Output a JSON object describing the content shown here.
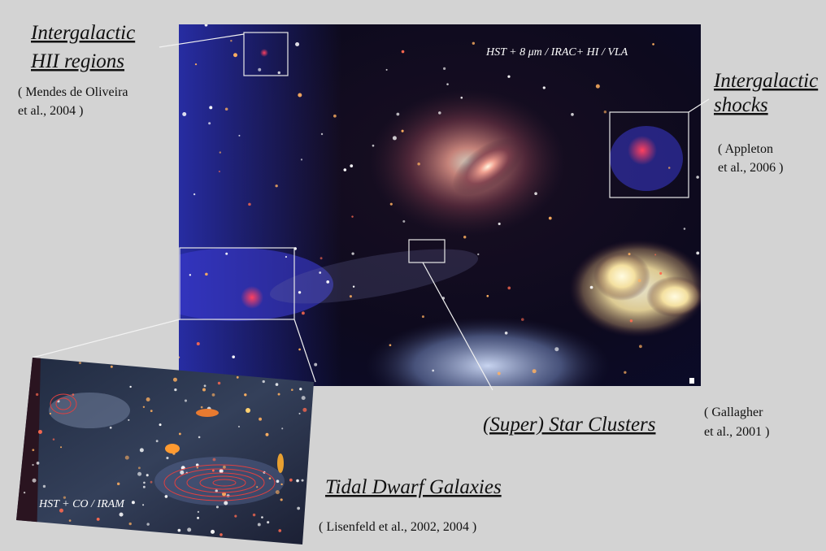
{
  "labels": {
    "hii": {
      "title": [
        "Intergalactic",
        "HII regions"
      ],
      "citation": [
        "( Mendes de Oliveira",
        "et al., 2004 )"
      ]
    },
    "shocks": {
      "title": [
        "Intergalactic",
        "shocks"
      ],
      "citation": [
        "( Appleton",
        "et al.,  2006 )"
      ]
    },
    "clusters": {
      "title": "(Super) Star Clusters",
      "citation": [
        "( Gallagher",
        "et al.,  2001 )"
      ]
    },
    "tdg": {
      "title": "Tidal Dwarf Galaxies",
      "citation": "( Lisenfeld et al., 2002, 2004 )"
    }
  },
  "image": {
    "caption": "HST + 8 μm / IRAC+  HI / VLA"
  },
  "inset": {
    "caption": "HST + CO /  IRAM"
  }
}
